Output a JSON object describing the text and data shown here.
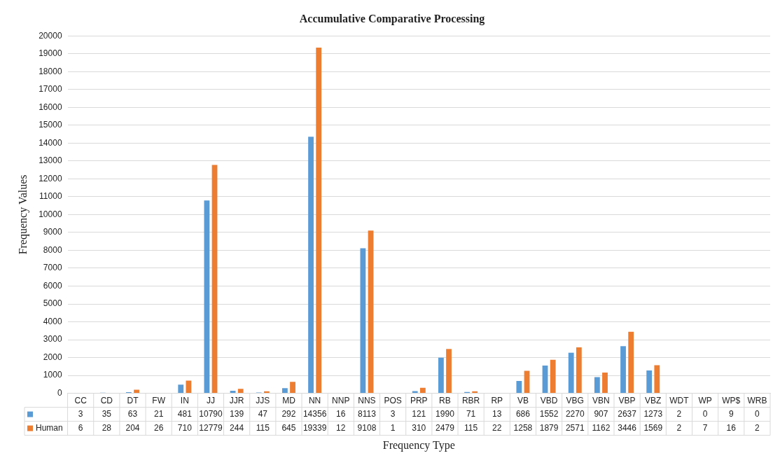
{
  "chart_data": {
    "type": "bar",
    "title": "Accumulative Comparative Processing",
    "xlabel": "Frequency Type",
    "ylabel": "Frequency Values",
    "categories": [
      "CC",
      "CD",
      "DT",
      "FW",
      "IN",
      "JJ",
      "JJR",
      "JJS",
      "MD",
      "NN",
      "NNP",
      "NNS",
      "POS",
      "PRP",
      "RB",
      "RBR",
      "RP",
      "VB",
      "VBD",
      "VBG",
      "VBN",
      "VBP",
      "VBZ",
      "WDT",
      "WP",
      "WP$",
      "WRB"
    ],
    "series": [
      {
        "color": "#5b9bd5",
        "values": [
          3,
          35,
          63,
          21,
          481,
          10790,
          139,
          47,
          292,
          14356,
          16,
          8113,
          3,
          121,
          1990,
          71,
          13,
          686,
          1552,
          2270,
          907,
          2637,
          1273,
          2,
          0,
          9,
          0
        ]
      },
      {
        "name": "Human",
        "color": "#ed7d31",
        "values": [
          6,
          28,
          204,
          26,
          710,
          12779,
          244,
          115,
          645,
          19339,
          12,
          9108,
          1,
          310,
          2479,
          115,
          22,
          1258,
          1879,
          2571,
          1162,
          3446,
          1569,
          2,
          7,
          16,
          2
        ]
      }
    ],
    "ylim": [
      0,
      20000
    ],
    "yticks": [
      0,
      1000,
      2000,
      3000,
      4000,
      5000,
      6000,
      7000,
      8000,
      9000,
      10000,
      11000,
      12000,
      13000,
      14000,
      15000,
      16000,
      17000,
      18000,
      19000,
      20000
    ],
    "grid": "y",
    "data_labels": true
  }
}
